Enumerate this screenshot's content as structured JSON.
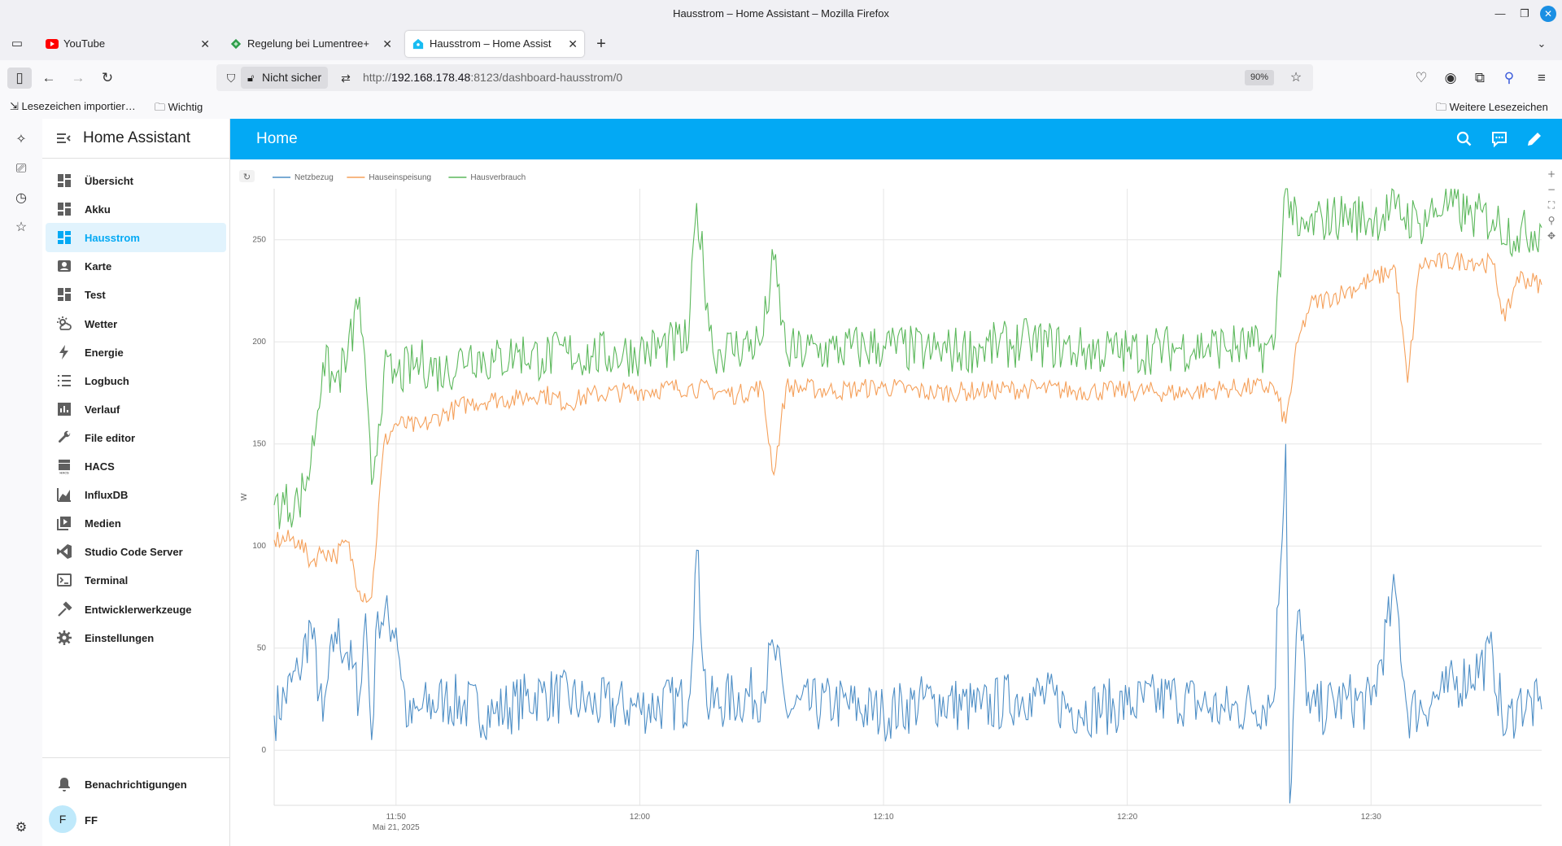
{
  "window": {
    "title": "Hausstrom – Home Assistant – Mozilla Firefox"
  },
  "tabs": [
    {
      "label": "YouTube",
      "icon": "youtube-icon"
    },
    {
      "label": "Regelung bei Lumentree+Tr",
      "icon": "tab-favicon-icon"
    },
    {
      "label": "Hausstrom – Home Assistan",
      "icon": "home-assistant-icon",
      "active": true
    }
  ],
  "navbar": {
    "security_label": "Nicht sicher",
    "url_prefix": "http://",
    "url_host": "192.168.178.48",
    "url_rest": ":8123/dashboard-hausstrom/0",
    "zoom": "90%"
  },
  "bookmarks": {
    "import_label": "Lesezeichen importier…",
    "folder_label": "Wichtig",
    "more_label": "Weitere Lesezeichen"
  },
  "drawer": {
    "title": "Home Assistant",
    "items": [
      {
        "label": "Übersicht",
        "icon": "dashboard-icon"
      },
      {
        "label": "Akku",
        "icon": "dashboard-icon"
      },
      {
        "label": "Hausstrom",
        "icon": "dashboard-icon",
        "selected": true
      },
      {
        "label": "Karte",
        "icon": "map-icon"
      },
      {
        "label": "Test",
        "icon": "dashboard-icon"
      },
      {
        "label": "Wetter",
        "icon": "weather-icon"
      },
      {
        "label": "Energie",
        "icon": "lightning-icon"
      },
      {
        "label": "Logbuch",
        "icon": "list-icon"
      },
      {
        "label": "Verlauf",
        "icon": "chart-icon"
      },
      {
        "label": "File editor",
        "icon": "wrench-icon"
      },
      {
        "label": "HACS",
        "icon": "hacs-icon"
      },
      {
        "label": "InfluxDB",
        "icon": "line-chart-icon"
      },
      {
        "label": "Medien",
        "icon": "media-icon"
      },
      {
        "label": "Studio Code Server",
        "icon": "vscode-icon"
      },
      {
        "label": "Terminal",
        "icon": "terminal-icon"
      },
      {
        "label": "Entwicklerwerkzeuge",
        "icon": "hammer-icon"
      },
      {
        "label": "Einstellungen",
        "icon": "gear-icon"
      }
    ],
    "notifications_label": "Benachrichtigungen",
    "user_initial": "F",
    "user_name": "FF"
  },
  "header": {
    "title": "Home"
  },
  "colors": {
    "accent": "#03a9f4",
    "netzbezug": "#5470c6",
    "hauseinspeisung": "#fc8452",
    "hausverbrauch": "#3ba272"
  },
  "chart_data": {
    "type": "line",
    "title": "",
    "ylabel": "W",
    "ylim": [
      -27,
      275
    ],
    "yticks": [
      0,
      50,
      100,
      150,
      200,
      250
    ],
    "x_range": [
      "11:45",
      "12:37"
    ],
    "xticks": [
      "11:50",
      "12:00",
      "12:10",
      "12:20",
      "12:30"
    ],
    "x_date_label": "Mai 21, 2025",
    "legend_position": "top-left",
    "grid": true,
    "series": [
      {
        "name": "Netzbezug",
        "color": "#4f8fc6",
        "points": [
          [
            "11:45",
            17
          ],
          [
            "11:46",
            38
          ],
          [
            "11:46:30",
            62
          ],
          [
            "11:47",
            14
          ],
          [
            "11:47:30",
            58
          ],
          [
            "11:48",
            48
          ],
          [
            "11:48:30",
            26
          ],
          [
            "11:48:45",
            67
          ],
          [
            "11:49",
            5
          ],
          [
            "11:49:15",
            68
          ],
          [
            "11:50",
            60
          ],
          [
            "11:50:30",
            12
          ],
          [
            "11:51",
            20
          ],
          [
            "11:52",
            25
          ],
          [
            "11:54",
            18
          ],
          [
            "11:56",
            28
          ],
          [
            "11:58",
            22
          ],
          [
            "12:00",
            21
          ],
          [
            "12:02",
            24
          ],
          [
            "12:02:20",
            98
          ],
          [
            "12:02:45",
            22
          ],
          [
            "12:05",
            28
          ],
          [
            "12:05:30",
            50
          ],
          [
            "12:06",
            20
          ],
          [
            "12:08",
            23
          ],
          [
            "12:10",
            18
          ],
          [
            "12:12",
            25
          ],
          [
            "12:14",
            20
          ],
          [
            "12:16",
            28
          ],
          [
            "12:18",
            20
          ],
          [
            "12:20",
            22
          ],
          [
            "12:22",
            26
          ],
          [
            "12:24",
            19
          ],
          [
            "12:26",
            24
          ],
          [
            "12:26:30",
            150
          ],
          [
            "12:26:40",
            -26
          ],
          [
            "12:27",
            68
          ],
          [
            "12:27:30",
            18
          ],
          [
            "12:29",
            25
          ],
          [
            "12:30",
            22
          ],
          [
            "12:31",
            78
          ],
          [
            "12:31:30",
            18
          ],
          [
            "12:33",
            28
          ],
          [
            "12:35",
            46
          ],
          [
            "12:35:30",
            8
          ],
          [
            "12:36",
            24
          ],
          [
            "12:37",
            20
          ]
        ]
      },
      {
        "name": "Hauseinspeisung",
        "color": "#f5a05a",
        "points": [
          [
            "11:45",
            103
          ],
          [
            "11:46",
            103
          ],
          [
            "11:46:30",
            92
          ],
          [
            "11:47",
            98
          ],
          [
            "11:47:30",
            95
          ],
          [
            "11:48",
            102
          ],
          [
            "11:48:30",
            78
          ],
          [
            "11:49",
            75
          ],
          [
            "11:49:30",
            150
          ],
          [
            "11:50",
            160
          ],
          [
            "11:51",
            158
          ],
          [
            "11:52",
            165
          ],
          [
            "11:53",
            170
          ],
          [
            "11:54",
            172
          ],
          [
            "11:55",
            172
          ],
          [
            "11:56",
            175
          ],
          [
            "11:57",
            170
          ],
          [
            "11:58",
            174
          ],
          [
            "12:00",
            176
          ],
          [
            "12:02",
            178
          ],
          [
            "12:04",
            174
          ],
          [
            "12:05",
            178
          ],
          [
            "12:05:30",
            135
          ],
          [
            "12:06",
            178
          ],
          [
            "12:08",
            176
          ],
          [
            "12:10",
            178
          ],
          [
            "12:12",
            175
          ],
          [
            "12:14",
            176
          ],
          [
            "12:16",
            177
          ],
          [
            "12:18",
            176
          ],
          [
            "12:20",
            176
          ],
          [
            "12:22",
            175
          ],
          [
            "12:24",
            177
          ],
          [
            "12:26",
            178
          ],
          [
            "12:26:30",
            160
          ],
          [
            "12:27",
            200
          ],
          [
            "12:27:30",
            218
          ],
          [
            "12:29",
            225
          ],
          [
            "12:30",
            230
          ],
          [
            "12:31",
            236
          ],
          [
            "12:31:30",
            180
          ],
          [
            "12:32",
            238
          ],
          [
            "12:34",
            240
          ],
          [
            "12:35",
            238
          ],
          [
            "12:35:30",
            210
          ],
          [
            "12:36",
            232
          ],
          [
            "12:37",
            228
          ]
        ]
      },
      {
        "name": "Hausverbrauch",
        "color": "#5cb85c",
        "points": [
          [
            "11:45",
            120
          ],
          [
            "11:46",
            121
          ],
          [
            "11:46:30",
            140
          ],
          [
            "11:47",
            190
          ],
          [
            "11:47:30",
            180
          ],
          [
            "11:48",
            192
          ],
          [
            "11:48:30",
            222
          ],
          [
            "11:49",
            130
          ],
          [
            "11:49:30",
            185
          ],
          [
            "11:50",
            183
          ],
          [
            "11:51",
            190
          ],
          [
            "11:52",
            185
          ],
          [
            "11:53",
            195
          ],
          [
            "11:54",
            190
          ],
          [
            "11:55",
            195
          ],
          [
            "11:56",
            192
          ],
          [
            "11:57",
            195
          ],
          [
            "11:58",
            193
          ],
          [
            "12:00",
            195
          ],
          [
            "12:02",
            200
          ],
          [
            "12:02:20",
            268
          ],
          [
            "12:03",
            195
          ],
          [
            "12:05",
            200
          ],
          [
            "12:05:30",
            240
          ],
          [
            "12:06",
            195
          ],
          [
            "12:08",
            196
          ],
          [
            "12:10",
            198
          ],
          [
            "12:12",
            195
          ],
          [
            "12:14",
            197
          ],
          [
            "12:16",
            200
          ],
          [
            "12:18",
            196
          ],
          [
            "12:20",
            195
          ],
          [
            "12:22",
            197
          ],
          [
            "12:24",
            198
          ],
          [
            "12:26",
            196
          ],
          [
            "12:26:30",
            278
          ],
          [
            "12:27",
            252
          ],
          [
            "12:28",
            260
          ],
          [
            "12:29",
            262
          ],
          [
            "12:30",
            260
          ],
          [
            "12:31",
            265
          ],
          [
            "12:32",
            258
          ],
          [
            "12:33",
            268
          ],
          [
            "12:34",
            262
          ],
          [
            "12:35",
            260
          ],
          [
            "12:36",
            252
          ],
          [
            "12:37",
            256
          ]
        ]
      }
    ]
  }
}
